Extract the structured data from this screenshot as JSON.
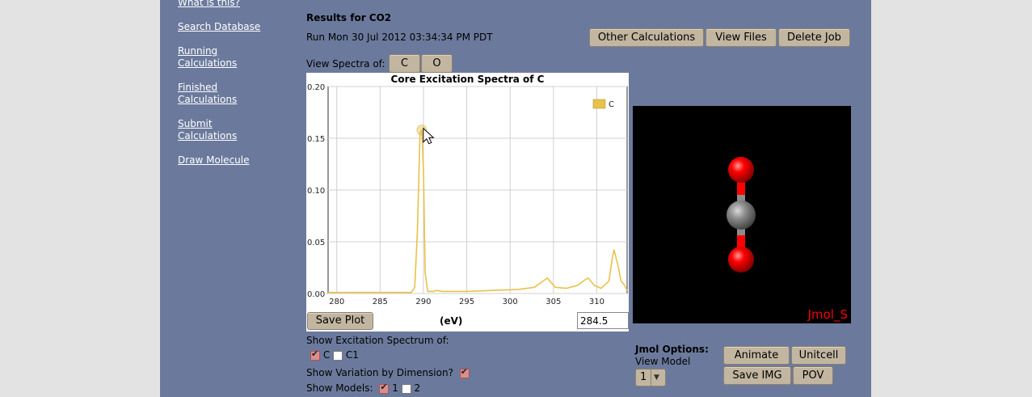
{
  "nav": [
    "What is this?",
    "Search Database",
    "Running Calculations",
    "Finished Calculations",
    "Submit Calculations",
    "Draw Molecule"
  ],
  "results_title": "Results for CO2",
  "run_info": "Run Mon 30 Jul 2012 03:34:34 PM PDT",
  "actions": {
    "other": "Other Calculations",
    "files": "View Files",
    "delete": "Delete Job"
  },
  "view_spectra": {
    "label": "View Spectra of:",
    "buttons": [
      "C",
      "O"
    ]
  },
  "plot": {
    "save": "Save Plot",
    "unit_label": "(eV)",
    "energy_value": "284.5"
  },
  "chart_data": {
    "type": "line",
    "title": "Core Excitation Spectra of C",
    "xlabel": "(eV)",
    "ylabel": "",
    "xlim": [
      279,
      313.5
    ],
    "ylim": [
      0,
      0.2
    ],
    "x_ticks": [
      "280",
      "285",
      "290",
      "295",
      "300",
      "305",
      "310"
    ],
    "y_ticks": [
      "0.00",
      "0.05",
      "0.10",
      "0.15",
      "0.20"
    ],
    "grid": true,
    "legend_position": "top-right",
    "series": [
      {
        "name": "C",
        "color": "#e8c24a",
        "x": [
          279,
          288.6,
          289.0,
          289.3,
          289.6,
          289.8,
          290.0,
          290.2,
          290.5,
          291.2,
          291.5,
          292.2,
          295,
          298,
          301,
          302.8,
          303.8,
          304.3,
          305.2,
          306.5,
          307.8,
          308.6,
          309.0,
          309.7,
          310.5,
          311.4,
          311.8,
          312.0,
          312.5,
          312.8,
          313.2,
          313.5
        ],
        "y": [
          0.001,
          0.001,
          0.006,
          0.06,
          0.155,
          0.158,
          0.12,
          0.02,
          0.002,
          0.002,
          0.003,
          0.002,
          0.002,
          0.003,
          0.004,
          0.006,
          0.012,
          0.015,
          0.006,
          0.005,
          0.008,
          0.013,
          0.015,
          0.008,
          0.005,
          0.012,
          0.035,
          0.042,
          0.025,
          0.012,
          0.008,
          0.003
        ]
      }
    ],
    "cursor_point": {
      "x": 289.8,
      "y": 0.158
    }
  },
  "options": {
    "show_excitation_label": "Show Excitation Spectrum of:",
    "excitation": [
      {
        "label": "C",
        "checked": true
      },
      {
        "label": "C1",
        "checked": false
      }
    ],
    "variation_label": "Show Variation by Dimension?",
    "variation_checked": true,
    "models_label": "Show Models:",
    "models": [
      {
        "label": "1",
        "checked": true
      },
      {
        "label": "2",
        "checked": false
      }
    ]
  },
  "jmol": {
    "options_label": "Jmol Options:",
    "view_model_label": "View Model",
    "view_model_value": "1",
    "buttons": {
      "animate": "Animate",
      "unitcell": "Unitcell",
      "save_img": "Save IMG",
      "pov": "POV"
    },
    "watermark": "Jmol_S",
    "atom_colors": {
      "O": "#ff0000",
      "C": "#8c8c8c"
    }
  }
}
